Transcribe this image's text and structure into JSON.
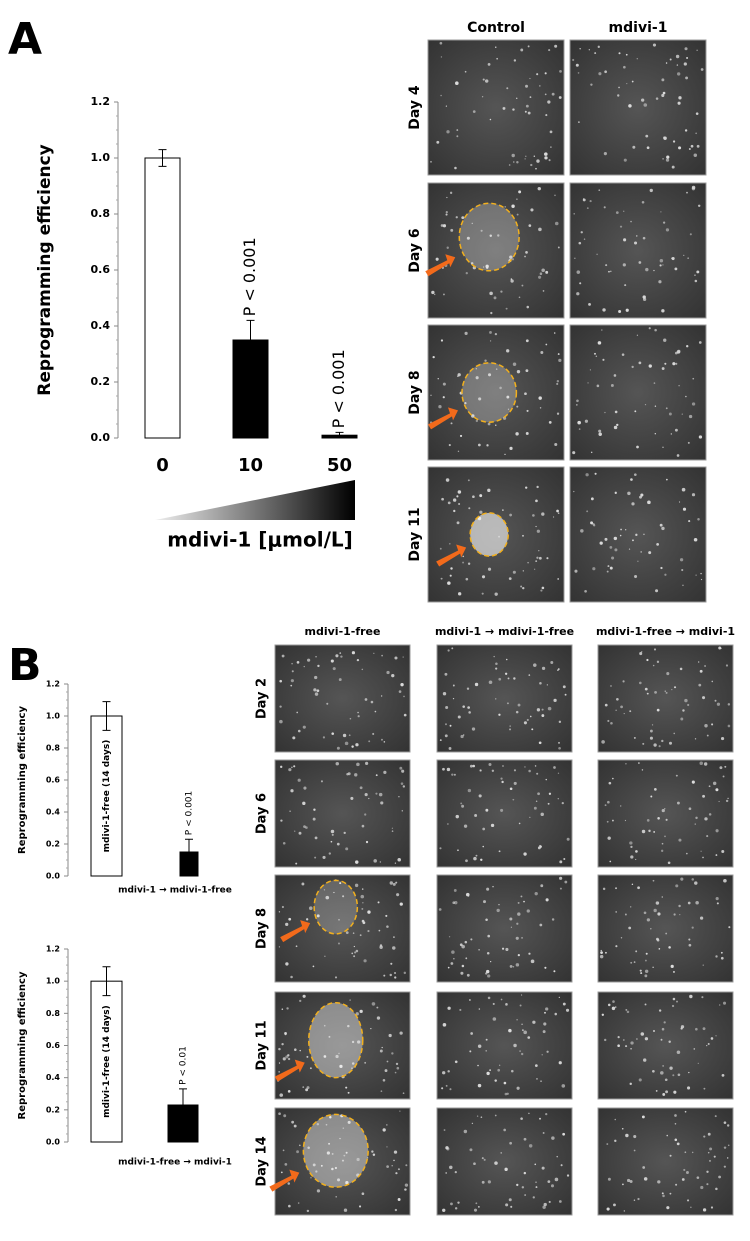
{
  "panels": {
    "a": "A",
    "b": "B"
  },
  "chart_data": [
    {
      "type": "bar",
      "y_label": "Reprogramming efficiency",
      "x_label": "mdivi-1 [μmol/L]",
      "categories": [
        "0",
        "10",
        "50"
      ],
      "values": [
        1.0,
        0.35,
        0.01
      ],
      "errors": [
        0.03,
        0.07,
        0.01
      ],
      "colors": [
        "#ffffff",
        "#000000",
        "#000000"
      ],
      "annotations": [
        null,
        "P < 0.001",
        "P < 0.001"
      ],
      "ylim": [
        0,
        1.2
      ],
      "yticks": [
        {
          "value": 0,
          "label": "0.0"
        },
        0.2,
        0.4,
        0.6,
        0.8,
        {
          "value": 1,
          "label": "1.0"
        },
        1.2
      ]
    },
    {
      "type": "bar",
      "y_label": "Reprogramming efficiency",
      "categories": [
        "mdivi-1-free (14 days)",
        "mdivi-1 → mdivi-1-free"
      ],
      "values": [
        1.0,
        0.15
      ],
      "errors": [
        0.09,
        0.08
      ],
      "colors": [
        "#ffffff",
        "#000000"
      ],
      "annotations": [
        null,
        "P < 0.001"
      ],
      "ylim": [
        0,
        1.2
      ],
      "yticks": [
        {
          "value": 0,
          "label": "0.0"
        },
        0.2,
        0.4,
        0.6,
        0.8,
        {
          "value": 1,
          "label": "1.0"
        },
        1.2
      ]
    },
    {
      "type": "bar",
      "y_label": "Reprogramming efficiency",
      "categories": [
        "mdivi-1-free (14 days)",
        "mdivi-1-free → mdivi-1"
      ],
      "values": [
        1.0,
        0.23
      ],
      "errors": [
        0.09,
        0.1
      ],
      "colors": [
        "#ffffff",
        "#000000"
      ],
      "annotations": [
        null,
        "P < 0.01"
      ],
      "ylim": [
        0,
        1.2
      ],
      "yticks": [
        {
          "value": 0,
          "label": "0.0"
        },
        0.2,
        0.4,
        0.6,
        0.8,
        {
          "value": 1,
          "label": "1.0"
        },
        1.2
      ]
    }
  ],
  "image_grids": [
    {
      "columns": [
        "Control",
        "mdivi-1"
      ],
      "rows": [
        "Day 4",
        "Day 6",
        "Day 8",
        "Day 11"
      ]
    },
    {
      "columns": [
        "mdivi-1-free",
        "mdivi-1 → mdivi-1-free",
        "mdivi-1-free → mdivi-1"
      ],
      "rows": [
        "Day 2",
        "Day 6",
        "Day 8",
        "Day 11",
        "Day 14"
      ]
    }
  ]
}
